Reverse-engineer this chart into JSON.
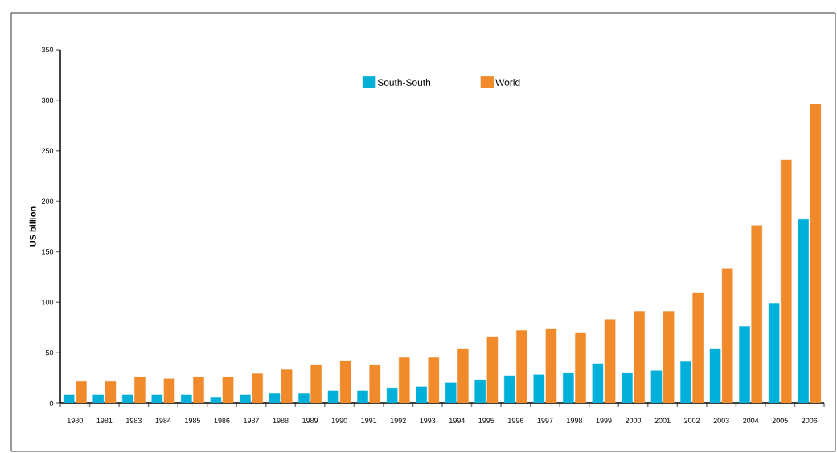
{
  "chart_data": {
    "type": "bar",
    "ylabel": "US billion",
    "categories": [
      "1980",
      "1981",
      "1983",
      "1984",
      "1985",
      "1986",
      "1987",
      "1988",
      "1989",
      "1990",
      "1991",
      "1992",
      "1993",
      "1994",
      "1995",
      "1996",
      "1997",
      "1998",
      "1999",
      "2000",
      "2001",
      "2002",
      "2003",
      "2004",
      "2005",
      "2006"
    ],
    "series": [
      {
        "name": "South-South",
        "color": "#00b0d8",
        "values": [
          8,
          8,
          8,
          8,
          8,
          6,
          8,
          10,
          10,
          12,
          12,
          15,
          16,
          20,
          23,
          27,
          28,
          30,
          39,
          30,
          32,
          41,
          54,
          76,
          99,
          182
        ]
      },
      {
        "name": "World",
        "color": "#f08a2a",
        "values": [
          22,
          22,
          26,
          24,
          26,
          26,
          29,
          33,
          38,
          42,
          38,
          45,
          45,
          54,
          66,
          72,
          74,
          70,
          83,
          91,
          91,
          109,
          133,
          176,
          241,
          296
        ]
      }
    ],
    "ylim": [
      0,
      350
    ],
    "yticks": [
      0,
      50,
      100,
      150,
      200,
      250,
      300,
      350
    ],
    "legend": "top"
  }
}
